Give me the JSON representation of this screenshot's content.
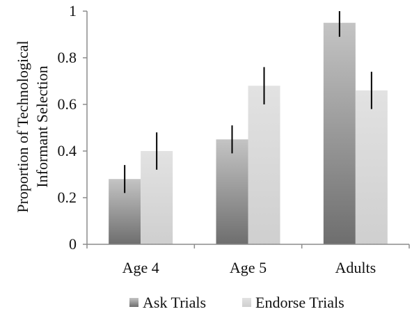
{
  "chart_data": {
    "type": "bar",
    "title": "",
    "ylabel": [
      "Proportion of Technological",
      "Informant Selection"
    ],
    "xlabel": "",
    "categories": [
      "Age 4",
      "Age 5",
      "Adults"
    ],
    "series": [
      {
        "name": "Ask Trials",
        "values": [
          0.28,
          0.45,
          0.95
        ],
        "error": [
          [
            0.22,
            0.34
          ],
          [
            0.39,
            0.51
          ],
          [
            0.89,
            1.0
          ]
        ],
        "color_top": "#c4c4c4",
        "color_bottom": "#6e6e6e"
      },
      {
        "name": "Endorse Trials",
        "values": [
          0.4,
          0.68,
          0.66
        ],
        "error": [
          [
            0.32,
            0.48
          ],
          [
            0.6,
            0.76
          ],
          [
            0.58,
            0.74
          ]
        ],
        "color_top": "#e2e2e2",
        "color_bottom": "#cfcfcf"
      }
    ],
    "ylim": [
      0,
      1
    ],
    "yticks": [
      "0",
      "0.2",
      "0.4",
      "0.6",
      "0.8",
      "1"
    ],
    "grid": false,
    "legend_position": "bottom",
    "axis_color": "#8c8c8c",
    "errorbar_color": "#000000"
  }
}
